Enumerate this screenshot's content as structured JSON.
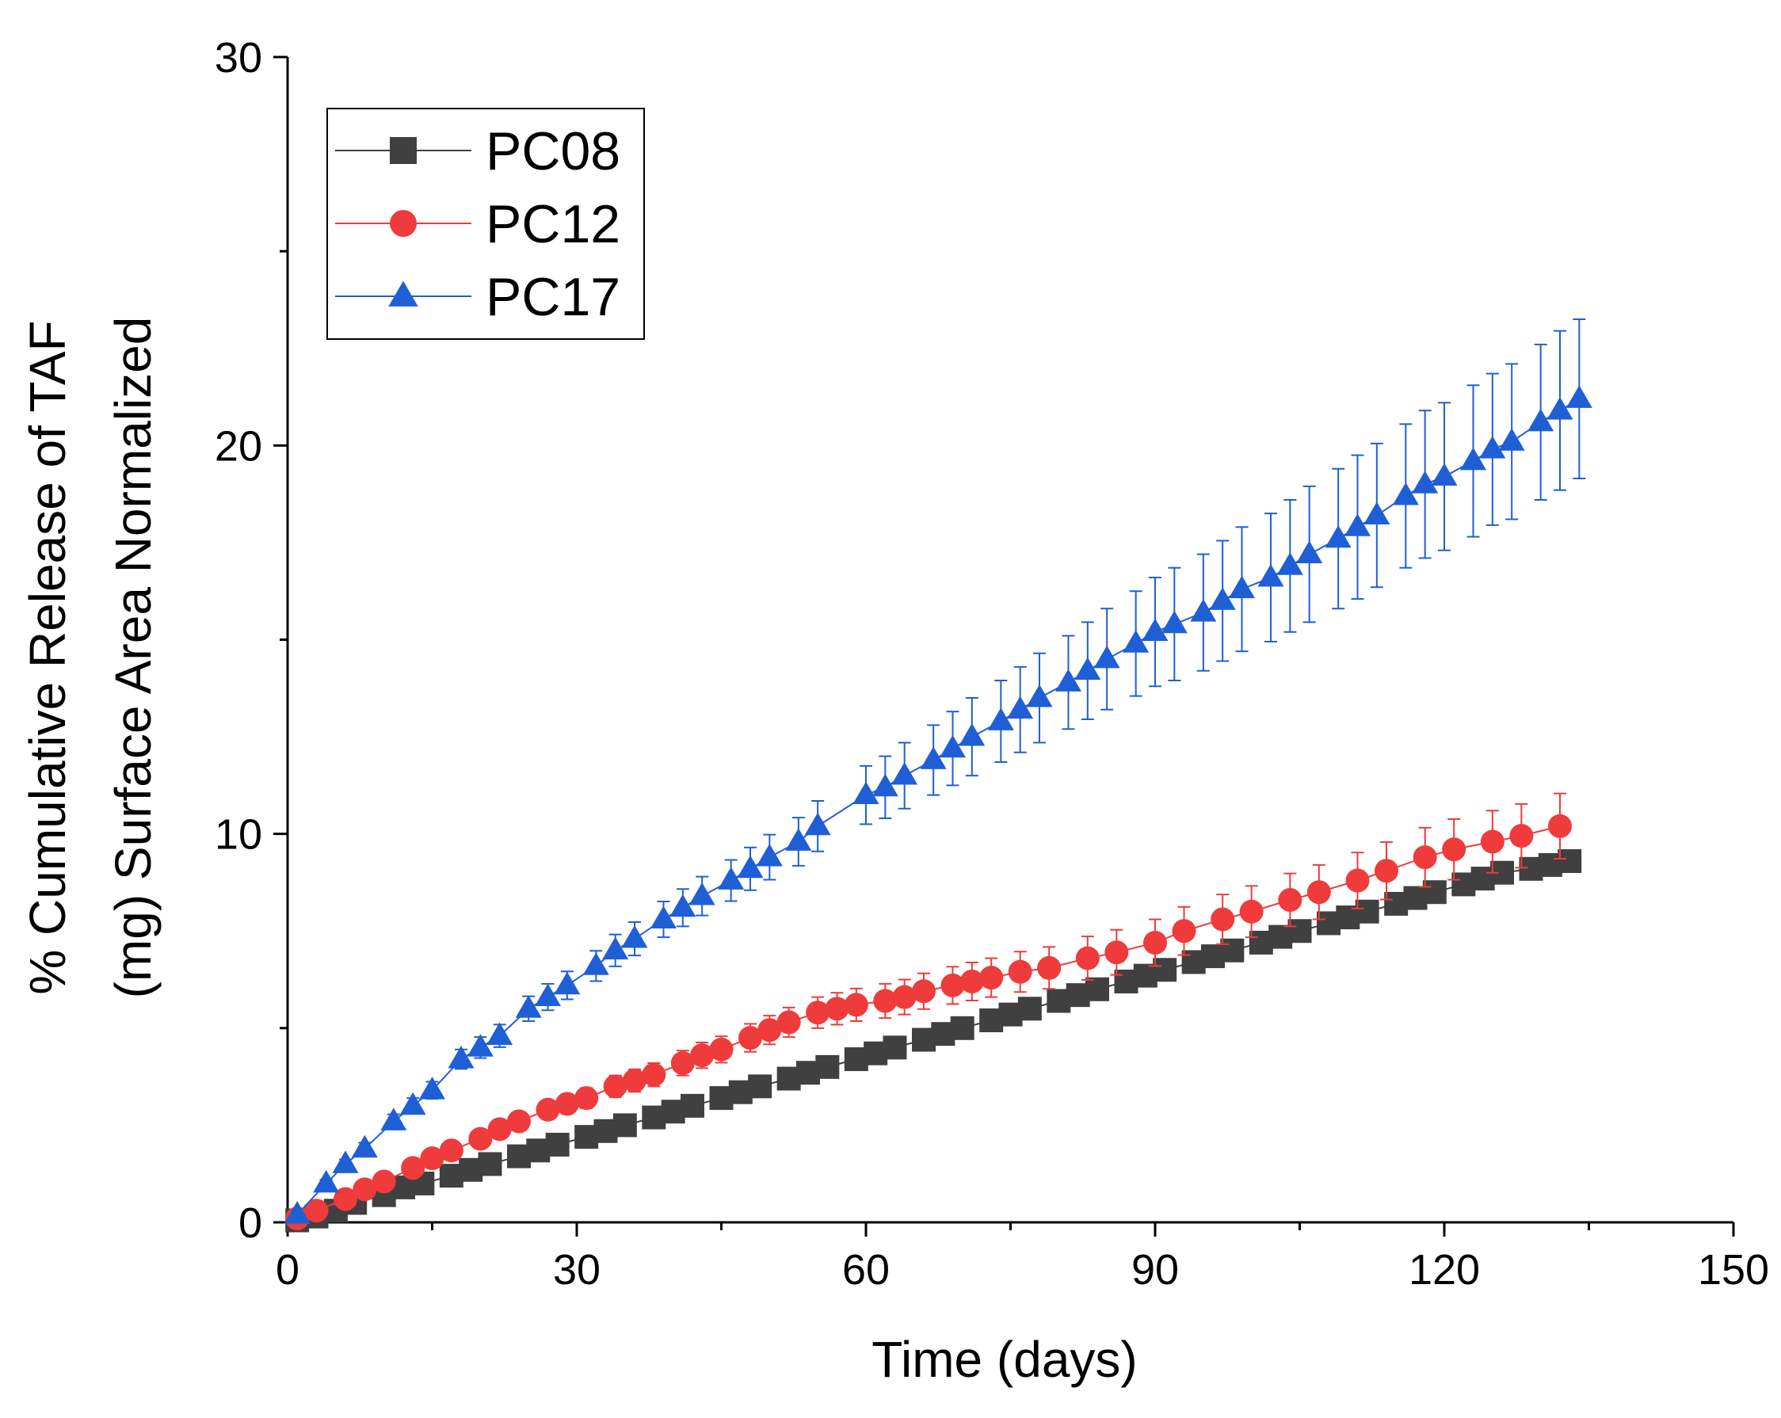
{
  "chart_data": {
    "type": "scatter",
    "xlabel": "Time (days)",
    "ylabel_lines": [
      "% Cumulative Release of TAF",
      "(mg) Surface Area Normalized"
    ],
    "xlim": [
      0,
      150
    ],
    "ylim": [
      0,
      30
    ],
    "xticks": [
      0,
      30,
      60,
      90,
      120,
      150
    ],
    "yticks": [
      0,
      10,
      20,
      30
    ],
    "grid": false,
    "legend_position": "top-left",
    "series": [
      {
        "name": "PC08",
        "marker": "square",
        "color": "#404040",
        "x": [
          1,
          3,
          5,
          7,
          10,
          12,
          14,
          17,
          19,
          21,
          24,
          26,
          28,
          31,
          33,
          35,
          38,
          40,
          42,
          45,
          47,
          49,
          52,
          54,
          56,
          59,
          61,
          63,
          66,
          68,
          70,
          73,
          75,
          77,
          80,
          82,
          84,
          87,
          89,
          91,
          94,
          96,
          98,
          101,
          103,
          105,
          108,
          110,
          112,
          115,
          117,
          119,
          122,
          124,
          126,
          129,
          131,
          133
        ],
        "y": [
          0.05,
          0.15,
          0.3,
          0.5,
          0.7,
          0.9,
          1.0,
          1.2,
          1.35,
          1.5,
          1.7,
          1.85,
          2.0,
          2.2,
          2.35,
          2.5,
          2.7,
          2.85,
          3.0,
          3.2,
          3.35,
          3.5,
          3.7,
          3.85,
          4.0,
          4.2,
          4.35,
          4.5,
          4.7,
          4.85,
          5.0,
          5.2,
          5.35,
          5.5,
          5.7,
          5.85,
          6.0,
          6.2,
          6.35,
          6.5,
          6.7,
          6.85,
          7.0,
          7.2,
          7.35,
          7.5,
          7.7,
          7.85,
          8.0,
          8.2,
          8.35,
          8.5,
          8.7,
          8.85,
          9.0,
          9.1,
          9.2,
          9.3
        ],
        "err": [
          0.02,
          0.03,
          0.04,
          0.05,
          0.05,
          0.06,
          0.06,
          0.07,
          0.07,
          0.07,
          0.08,
          0.08,
          0.08,
          0.09,
          0.09,
          0.09,
          0.1,
          0.1,
          0.1,
          0.1,
          0.11,
          0.11,
          0.11,
          0.12,
          0.12,
          0.12,
          0.12,
          0.13,
          0.13,
          0.13,
          0.13,
          0.14,
          0.14,
          0.14,
          0.14,
          0.15,
          0.15,
          0.15,
          0.15,
          0.16,
          0.16,
          0.16,
          0.16,
          0.17,
          0.17,
          0.17,
          0.17,
          0.18,
          0.18,
          0.18,
          0.18,
          0.19,
          0.19,
          0.19,
          0.19,
          0.2,
          0.2,
          0.2
        ]
      },
      {
        "name": "PC12",
        "marker": "circle",
        "color": "#ef3b3b",
        "x": [
          1,
          3,
          6,
          8,
          10,
          13,
          15,
          17,
          20,
          22,
          24,
          27,
          29,
          31,
          34,
          36,
          38,
          41,
          43,
          45,
          48,
          50,
          52,
          55,
          57,
          59,
          62,
          64,
          66,
          69,
          71,
          73,
          76,
          79,
          83,
          86,
          90,
          93,
          97,
          100,
          104,
          107,
          111,
          114,
          118,
          121,
          125,
          128,
          132
        ],
        "y": [
          0.1,
          0.3,
          0.6,
          0.85,
          1.05,
          1.4,
          1.65,
          1.85,
          2.15,
          2.4,
          2.6,
          2.9,
          3.05,
          3.2,
          3.5,
          3.65,
          3.8,
          4.1,
          4.3,
          4.45,
          4.75,
          4.95,
          5.15,
          5.4,
          5.5,
          5.6,
          5.7,
          5.8,
          5.95,
          6.1,
          6.2,
          6.3,
          6.45,
          6.55,
          6.8,
          6.95,
          7.2,
          7.5,
          7.8,
          8.0,
          8.3,
          8.5,
          8.8,
          9.05,
          9.4,
          9.6,
          9.8,
          9.95,
          10.2
        ],
        "err": [
          0.05,
          0.08,
          0.1,
          0.12,
          0.13,
          0.15,
          0.17,
          0.18,
          0.2,
          0.21,
          0.22,
          0.24,
          0.25,
          0.26,
          0.28,
          0.29,
          0.3,
          0.32,
          0.33,
          0.34,
          0.36,
          0.37,
          0.38,
          0.4,
          0.41,
          0.42,
          0.44,
          0.45,
          0.46,
          0.48,
          0.49,
          0.5,
          0.52,
          0.54,
          0.56,
          0.58,
          0.6,
          0.62,
          0.64,
          0.66,
          0.68,
          0.7,
          0.72,
          0.74,
          0.76,
          0.78,
          0.8,
          0.82,
          0.84
        ]
      },
      {
        "name": "PC17",
        "marker": "triangle",
        "color": "#1f5fd6",
        "x": [
          1,
          4,
          6,
          8,
          11,
          13,
          15,
          18,
          20,
          22,
          25,
          27,
          29,
          32,
          34,
          36,
          39,
          41,
          43,
          46,
          48,
          50,
          53,
          55,
          60,
          62,
          64,
          67,
          69,
          71,
          74,
          76,
          78,
          81,
          83,
          85,
          88,
          90,
          92,
          95,
          97,
          99,
          102,
          104,
          106,
          109,
          111,
          113,
          116,
          118,
          120,
          123,
          125,
          127,
          130,
          132,
          134
        ],
        "y": [
          0.2,
          1.0,
          1.5,
          1.9,
          2.6,
          3.0,
          3.4,
          4.2,
          4.5,
          4.8,
          5.5,
          5.8,
          6.1,
          6.6,
          7.0,
          7.3,
          7.8,
          8.1,
          8.4,
          8.8,
          9.1,
          9.4,
          9.8,
          10.2,
          11.0,
          11.2,
          11.5,
          11.9,
          12.2,
          12.5,
          12.9,
          13.2,
          13.5,
          13.9,
          14.2,
          14.5,
          14.9,
          15.2,
          15.4,
          15.7,
          16.0,
          16.3,
          16.6,
          16.9,
          17.2,
          17.6,
          17.9,
          18.2,
          18.7,
          19.0,
          19.2,
          19.6,
          19.9,
          20.1,
          20.6,
          20.9,
          21.2
        ],
        "err": [
          0.05,
          0.1,
          0.12,
          0.15,
          0.18,
          0.2,
          0.22,
          0.25,
          0.27,
          0.29,
          0.32,
          0.34,
          0.36,
          0.39,
          0.41,
          0.43,
          0.46,
          0.48,
          0.5,
          0.53,
          0.55,
          0.58,
          0.62,
          0.65,
          0.75,
          0.8,
          0.85,
          0.9,
          0.95,
          1.0,
          1.05,
          1.1,
          1.15,
          1.2,
          1.25,
          1.3,
          1.35,
          1.4,
          1.45,
          1.5,
          1.55,
          1.6,
          1.65,
          1.7,
          1.75,
          1.8,
          1.85,
          1.85,
          1.85,
          1.9,
          1.9,
          1.95,
          1.95,
          2.0,
          2.0,
          2.05,
          2.05
        ]
      }
    ]
  }
}
